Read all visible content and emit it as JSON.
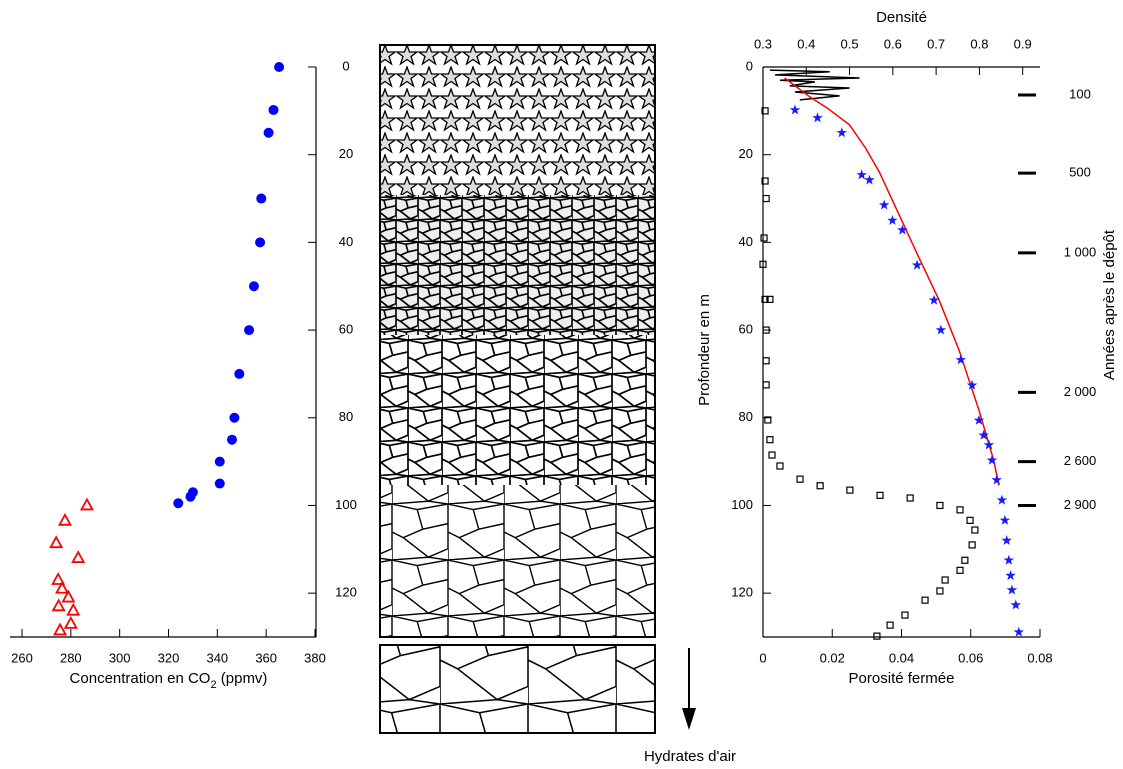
{
  "chart_data": [
    {
      "type": "scatter",
      "xlabel": [
        "Concentration en CO",
        "2",
        " (ppmv)"
      ],
      "xlim": [
        260,
        380
      ],
      "xticks": [
        260,
        280,
        300,
        320,
        340,
        360,
        380
      ],
      "ylim": [
        0,
        130
      ],
      "yticks": [
        0,
        20,
        40,
        60,
        80,
        100,
        120
      ],
      "y_inverted": true,
      "y_axis_side": "right",
      "series": [
        {
          "color": "#0000ff",
          "marker": "circle",
          "x": [
            365.3,
            363,
            361,
            358,
            357.5,
            355,
            353,
            349,
            347,
            346,
            341,
            341,
            330,
            329,
            324
          ],
          "values": [
            0,
            9.8,
            15,
            30,
            40,
            50,
            60,
            70,
            80,
            85,
            90,
            95,
            97,
            98,
            99.5
          ]
        },
        {
          "color": "#ff0000",
          "marker": "triangle",
          "x": [
            286.6,
            277.6,
            274,
            283,
            274.8,
            276.4,
            279,
            275,
            281,
            280,
            275.6
          ],
          "values": [
            100,
            103.5,
            108.6,
            112,
            117,
            119,
            121,
            123,
            124,
            127,
            128.5
          ]
        }
      ]
    },
    {
      "type": "scatter",
      "xlabel": "Porosité fermée",
      "x2label": "Densité",
      "ylabel": "Profondeur en m",
      "y2label": "Années après le dépôt",
      "xlim": [
        0,
        0.08
      ],
      "xticks": [
        0,
        0.02,
        0.04,
        0.06,
        0.08
      ],
      "x2lim": [
        0.3,
        0.94
      ],
      "x2ticks": [
        0.3,
        0.4,
        0.5,
        0.6,
        0.7,
        0.8,
        0.9
      ],
      "ylim": [
        0,
        130
      ],
      "yticks": [
        0,
        20,
        40,
        60,
        80,
        100,
        120
      ],
      "y_inverted": true,
      "age_ticks": [
        {
          "value": 6.4,
          "label": "100"
        },
        {
          "value": 24.2,
          "label": "500"
        },
        {
          "value": 42.4,
          "label": "1 000"
        },
        {
          "value": 74.2,
          "label": "2 000"
        },
        {
          "value": 90,
          "label": "2 600"
        },
        {
          "value": 100,
          "label": "2 900"
        }
      ],
      "series": [
        {
          "color": "#000000",
          "marker": "line",
          "axis": "x2",
          "x": [
            0.316,
            0.454,
            0.328,
            0.523,
            0.339,
            0.42,
            0.362,
            0.5,
            0.374,
            0.477,
            0.385
          ],
          "values": [
            0.7,
            1.1,
            1.8,
            2.5,
            3.0,
            3.4,
            4.3,
            4.8,
            5.7,
            6.6,
            7.5
          ]
        },
        {
          "color": "#ff0000",
          "marker": "line",
          "axis": "x2",
          "x": [
            0.35,
            0.408,
            0.449,
            0.5,
            0.537,
            0.569,
            0.615,
            0.661,
            0.707,
            0.753,
            0.799,
            0.833,
            0.845
          ],
          "values": [
            2.5,
            6.8,
            9.4,
            13.2,
            18.5,
            24,
            33.8,
            43.6,
            53.2,
            64.6,
            78.3,
            89.7,
            95.4
          ]
        },
        {
          "color": "#1a1aff",
          "marker": "star",
          "axis": "x2",
          "x": [
            0.374,
            0.426,
            0.482,
            0.528,
            0.546,
            0.58,
            0.599,
            0.622,
            0.656,
            0.695,
            0.711,
            0.757,
            0.783,
            0.799,
            0.81,
            0.822,
            0.829,
            0.84,
            0.852,
            0.859,
            0.863,
            0.868,
            0.872,
            0.875,
            0.884,
            0.891
          ],
          "values": [
            9.8,
            11.6,
            15,
            24.6,
            25.8,
            31.5,
            35,
            37.2,
            45.2,
            53.2,
            60,
            66.8,
            72.6,
            80.6,
            84,
            86.2,
            89.7,
            94.2,
            98.8,
            103.4,
            108,
            112.5,
            116,
            119.3,
            122.7,
            128.9
          ]
        },
        {
          "color": "#000000",
          "marker": "square",
          "x": [
            0.0006,
            0.0006,
            0.0009,
            0.0003,
            0,
            0.0006,
            0.002,
            0.0009,
            0.0009,
            0.0009,
            0.0014,
            0.002,
            0.0026,
            0.0049,
            0.0107,
            0.0165,
            0.0251,
            0.0338,
            0.0425,
            0.0511,
            0.0569,
            0.0598,
            0.0612,
            0.0604,
            0.0583,
            0.0569,
            0.0526,
            0.0511,
            0.0468,
            0.041,
            0.0367,
            0.0329
          ],
          "values": [
            10,
            26,
            30,
            39,
            45,
            53,
            53,
            60,
            67,
            72.5,
            80.5,
            85,
            88.5,
            91,
            94,
            95.5,
            96.5,
            97.7,
            98.3,
            100,
            101,
            103.4,
            105.6,
            109,
            112.5,
            114.8,
            117,
            119.5,
            121.6,
            125,
            127.3,
            129.8
          ]
        }
      ]
    }
  ],
  "diagram": {
    "label": "Hydrates d'air"
  }
}
